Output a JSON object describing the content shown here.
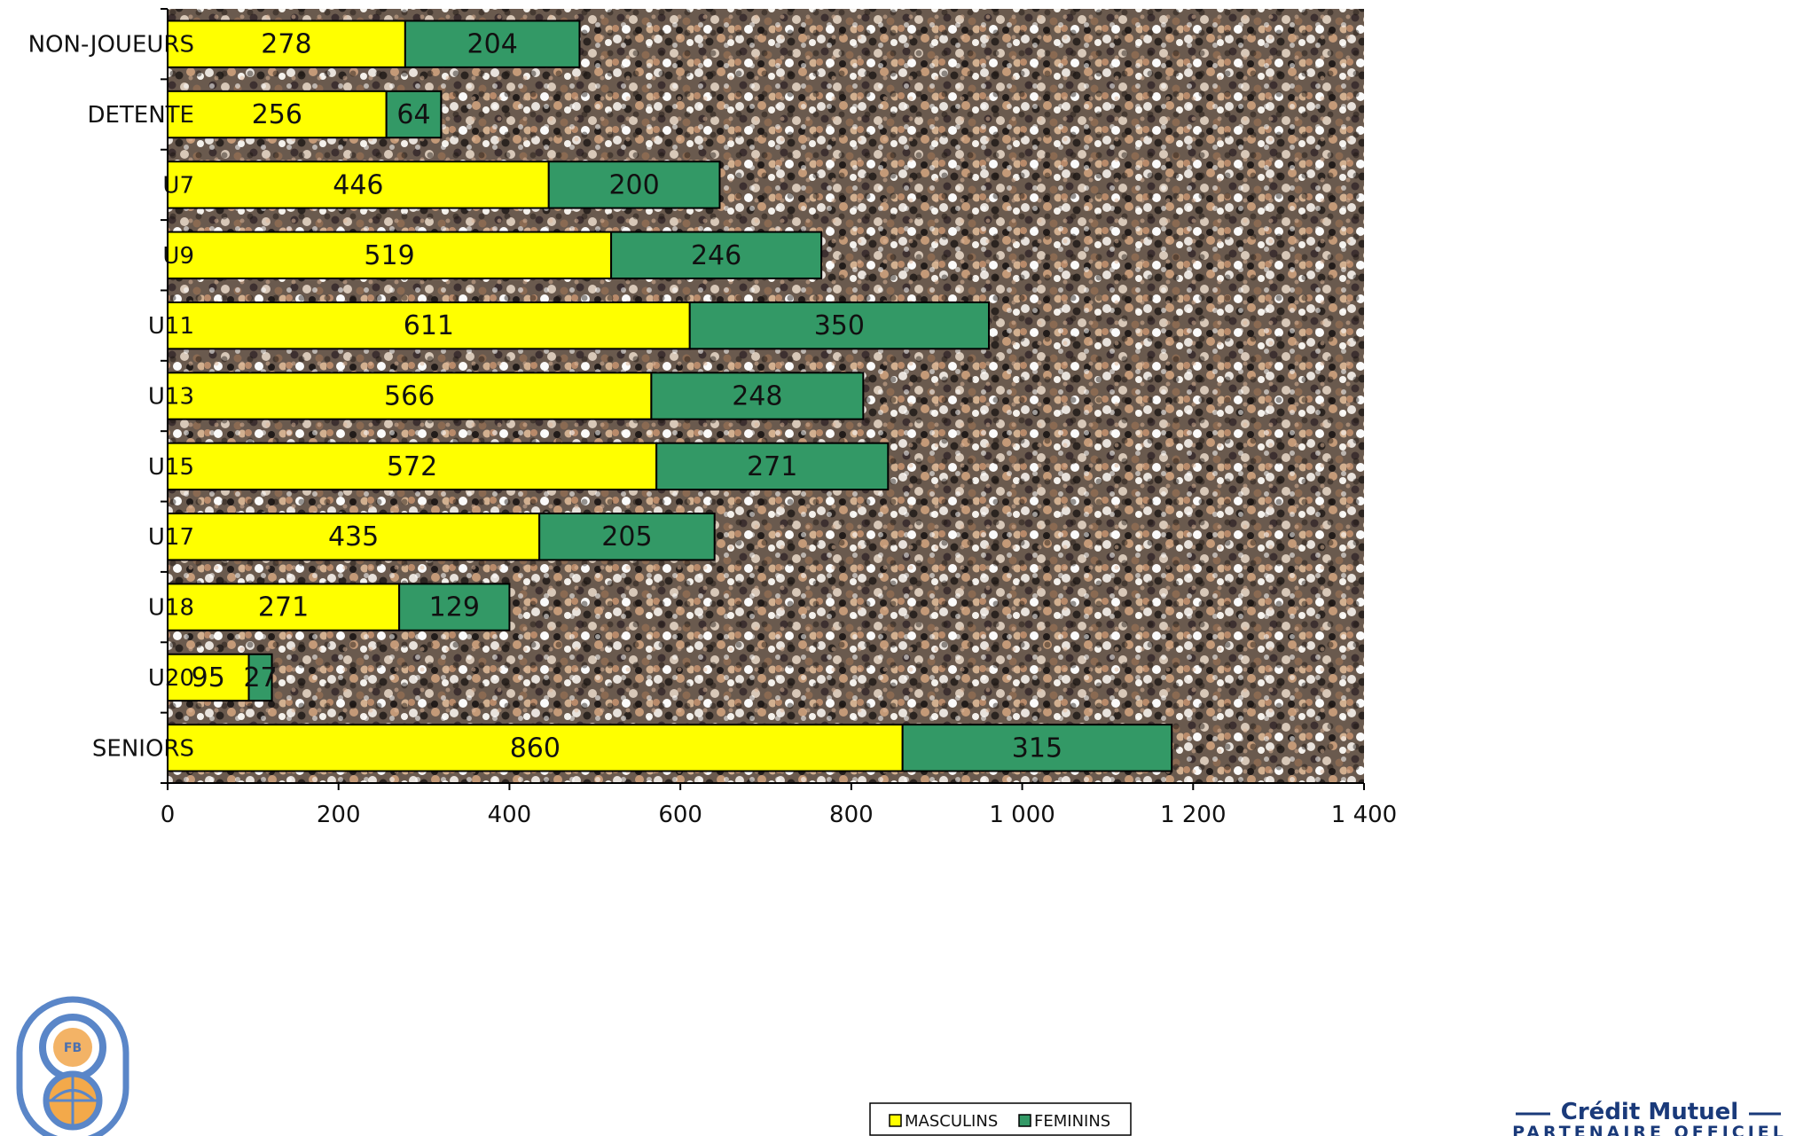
{
  "chart_data": {
    "type": "bar",
    "orientation": "horizontal",
    "stacked": true,
    "categories": [
      "NON-JOUEURS",
      "DETENTE",
      "U7",
      "U9",
      "U11",
      "U13",
      "U15",
      "U17",
      "U18",
      "U20",
      "SENIORS"
    ],
    "series": [
      {
        "name": "MASCULINS",
        "color": "#ffff00",
        "values": [
          278,
          256,
          446,
          519,
          611,
          566,
          572,
          435,
          271,
          95,
          860
        ]
      },
      {
        "name": "FEMININS",
        "color": "#339966",
        "values": [
          204,
          64,
          200,
          246,
          350,
          248,
          271,
          205,
          129,
          27,
          315
        ]
      }
    ],
    "xlim": [
      0,
      1400
    ],
    "xticks": [
      0,
      200,
      400,
      600,
      800,
      1000,
      1200,
      1400
    ],
    "xtick_labels": [
      "0",
      "200",
      "400",
      "600",
      "800",
      "1 000",
      "1 200",
      "1 400"
    ],
    "title": "",
    "xlabel": "",
    "ylabel": "",
    "legend_position": "bottom-center",
    "grid": false,
    "background": "crowd photograph"
  },
  "logos": {
    "federation_logo": "FB",
    "sponsor_name": "Crédit Mutuel",
    "sponsor_tagline": "PARTENAIRE OFFICIEL"
  }
}
